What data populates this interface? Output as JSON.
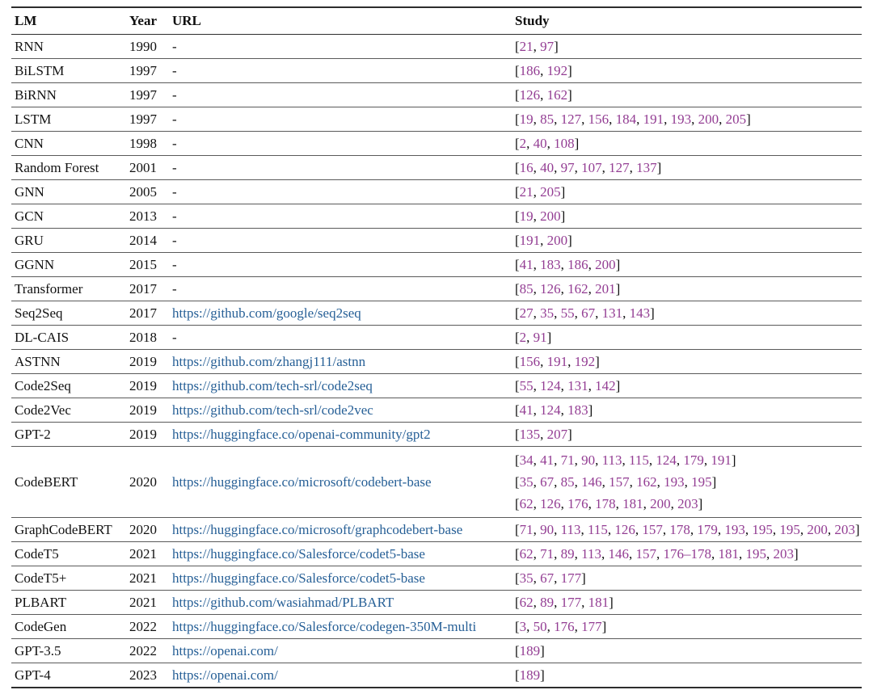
{
  "table": {
    "columns": [
      {
        "label": "LM"
      },
      {
        "label": "Year"
      },
      {
        "label": "URL"
      },
      {
        "label": "Study"
      }
    ],
    "colors": {
      "citation": "#933d93",
      "url": "#265f96",
      "text": "#111111",
      "thin_rule": "#5a5a5a",
      "heavy_rule": "#2d2d2d"
    },
    "empty_url_placeholder": "-",
    "rows": [
      {
        "lm": "RNN",
        "year": "1990",
        "url": "-",
        "studies": [
          [
            "21",
            "97"
          ]
        ]
      },
      {
        "lm": "BiLSTM",
        "year": "1997",
        "url": "-",
        "studies": [
          [
            "186",
            "192"
          ]
        ]
      },
      {
        "lm": "BiRNN",
        "year": "1997",
        "url": "-",
        "studies": [
          [
            "126",
            "162"
          ]
        ]
      },
      {
        "lm": "LSTM",
        "year": "1997",
        "url": "-",
        "studies": [
          [
            "19",
            "85",
            "127",
            "156",
            "184",
            "191",
            "193",
            "200",
            "205"
          ]
        ]
      },
      {
        "lm": "CNN",
        "year": "1998",
        "url": "-",
        "studies": [
          [
            "2",
            "40",
            "108"
          ]
        ]
      },
      {
        "lm": "Random Forest",
        "year": "2001",
        "url": "-",
        "studies": [
          [
            "16",
            "40",
            "97",
            "107",
            "127",
            "137"
          ]
        ]
      },
      {
        "lm": "GNN",
        "year": "2005",
        "url": "-",
        "studies": [
          [
            "21",
            "205"
          ]
        ]
      },
      {
        "lm": "GCN",
        "year": "2013",
        "url": "-",
        "studies": [
          [
            "19",
            "200"
          ]
        ]
      },
      {
        "lm": "GRU",
        "year": "2014",
        "url": "-",
        "studies": [
          [
            "191",
            "200"
          ]
        ]
      },
      {
        "lm": "GGNN",
        "year": "2015",
        "url": "-",
        "studies": [
          [
            "41",
            "183",
            "186",
            "200"
          ]
        ]
      },
      {
        "lm": "Transformer",
        "year": "2017",
        "url": "-",
        "studies": [
          [
            "85",
            "126",
            "162",
            "201"
          ]
        ]
      },
      {
        "lm": "Seq2Seq",
        "year": "2017",
        "url": "https://github.com/google/seq2seq",
        "studies": [
          [
            "27",
            "35",
            "55",
            "67",
            "131",
            "143"
          ]
        ]
      },
      {
        "lm": "DL-CAIS",
        "year": "2018",
        "url": "-",
        "studies": [
          [
            "2",
            "91"
          ]
        ]
      },
      {
        "lm": "ASTNN",
        "year": "2019",
        "url": "https://github.com/zhangj111/astnn",
        "studies": [
          [
            "156",
            "191",
            "192"
          ]
        ]
      },
      {
        "lm": "Code2Seq",
        "year": "2019",
        "url": "https://github.com/tech-srl/code2seq",
        "studies": [
          [
            "55",
            "124",
            "131",
            "142"
          ]
        ]
      },
      {
        "lm": "Code2Vec",
        "year": "2019",
        "url": "https://github.com/tech-srl/code2vec",
        "studies": [
          [
            "41",
            "124",
            "183"
          ]
        ]
      },
      {
        "lm": "GPT-2",
        "year": "2019",
        "url": "https://huggingface.co/openai-community/gpt2",
        "studies": [
          [
            "135",
            "207"
          ]
        ]
      },
      {
        "lm": "CodeBERT",
        "year": "2020",
        "url": "https://huggingface.co/microsoft/codebert-base",
        "studies": [
          [
            "34",
            "41",
            "71",
            "90",
            "113",
            "115",
            "124",
            "179",
            "191"
          ],
          [
            "35",
            "67",
            "85",
            "146",
            "157",
            "162",
            "193",
            "195"
          ],
          [
            "62",
            "126",
            "176",
            "178",
            "181",
            "200",
            "203"
          ]
        ]
      },
      {
        "lm": "GraphCodeBERT",
        "year": "2020",
        "url": "https://huggingface.co/microsoft/graphcodebert-base",
        "studies": [
          [
            "71",
            "90",
            "113",
            "115",
            "126",
            "157",
            "178",
            "179",
            "193",
            "195",
            "195",
            "200",
            "203"
          ]
        ]
      },
      {
        "lm": "CodeT5",
        "year": "2021",
        "url": "https://huggingface.co/Salesforce/codet5-base",
        "studies": [
          [
            "62",
            "71",
            "89",
            "113",
            "146",
            "157",
            "176–178",
            "181",
            "195",
            "203"
          ]
        ]
      },
      {
        "lm": "CodeT5+",
        "year": "2021",
        "url": "https://huggingface.co/Salesforce/codet5-base",
        "studies": [
          [
            "35",
            "67",
            "177"
          ]
        ]
      },
      {
        "lm": "PLBART",
        "year": "2021",
        "url": "https://github.com/wasiahmad/PLBART",
        "studies": [
          [
            "62",
            "89",
            "177",
            "181"
          ]
        ]
      },
      {
        "lm": "CodeGen",
        "year": "2022",
        "url": "https://huggingface.co/Salesforce/codegen-350M-multi",
        "studies": [
          [
            "3",
            "50",
            "176",
            "177"
          ]
        ]
      },
      {
        "lm": "GPT-3.5",
        "year": "2022",
        "url": "https://openai.com/",
        "studies": [
          [
            "189"
          ]
        ]
      },
      {
        "lm": "GPT-4",
        "year": "2023",
        "url": "https://openai.com/",
        "studies": [
          [
            "189"
          ]
        ]
      }
    ]
  }
}
